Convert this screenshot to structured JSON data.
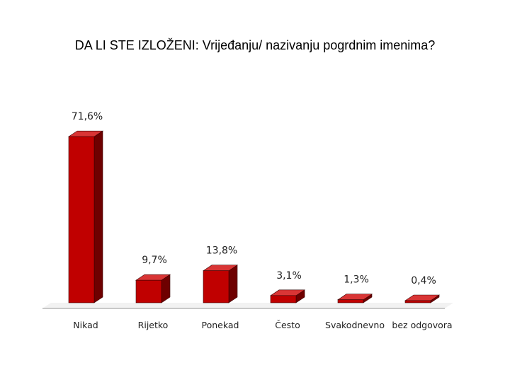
{
  "chart_data": {
    "type": "bar",
    "title": "DA LI STE IZLOŽENI: Vrijeđanju/ nazivanju pogrdnim imenima?",
    "categories": [
      "Nikad",
      "Rijetko",
      "Ponekad",
      "Često",
      "Svakodnevno",
      "bez odgovora"
    ],
    "values": [
      71.6,
      9.7,
      13.8,
      3.1,
      1.3,
      0.4
    ],
    "value_labels": [
      "71,6%",
      "9,7%",
      "13,8%",
      "3,1%",
      "1,3%",
      "0,4%"
    ],
    "xlabel": "",
    "ylabel": "",
    "ylim": [
      0,
      75
    ],
    "grid": false,
    "legend": "none",
    "style": "3d-columns"
  },
  "colors": {
    "bar_front": "#c00000",
    "bar_top": "#d93535",
    "bar_side": "#6e0000",
    "floor": "#c8c8c8"
  }
}
